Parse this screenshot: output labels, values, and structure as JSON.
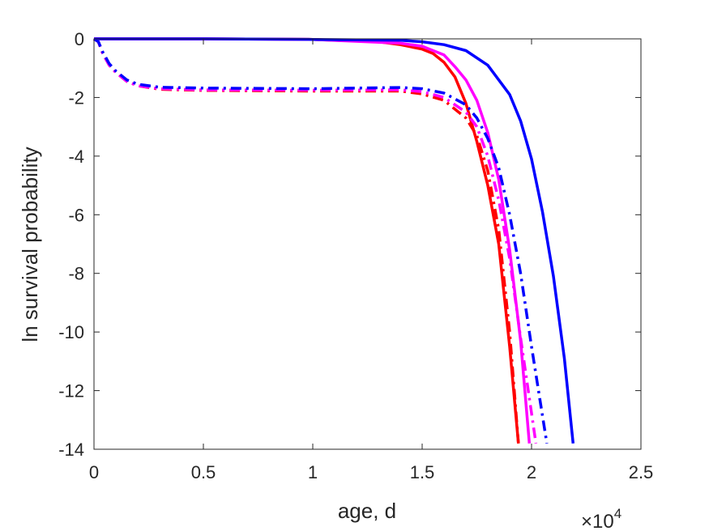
{
  "chart_data": {
    "type": "line",
    "xlabel": "age, d",
    "ylabel": "ln survival probability",
    "x_multiplier": {
      "base": "10",
      "exponent": "4",
      "sign": "×"
    },
    "xlim": [
      0,
      25000
    ],
    "ylim": [
      -14,
      0
    ],
    "xticks": [
      0,
      5000,
      10000,
      15000,
      20000,
      25000
    ],
    "xtick_labels": [
      "0",
      "0.5",
      "1",
      "1.5",
      "2",
      "2.5"
    ],
    "yticks": [
      0,
      -2,
      -4,
      -6,
      -8,
      -10,
      -12,
      -14
    ],
    "ytick_labels": [
      "0",
      "-2",
      "-4",
      "-6",
      "-8",
      "-10",
      "-12",
      "-14"
    ],
    "grid": false,
    "box": true,
    "series": [
      {
        "color": "#ff0000",
        "style": "solid",
        "x": [
          0,
          5000,
          10000,
          13000,
          14000,
          15000,
          15500,
          16000,
          16500,
          17000,
          17500,
          18000,
          18500,
          19000,
          19400
        ],
        "y": [
          0,
          0,
          -0.02,
          -0.1,
          -0.2,
          -0.35,
          -0.5,
          -0.8,
          -1.3,
          -2.2,
          -3.5,
          -5.0,
          -7.0,
          -10.5,
          -13.8
        ]
      },
      {
        "color": "#ff00ff",
        "style": "solid",
        "x": [
          0,
          5000,
          10000,
          14000,
          15000,
          16000,
          16500,
          17000,
          17500,
          18000,
          18500,
          19000,
          19500,
          19900
        ],
        "y": [
          0,
          0,
          -0.02,
          -0.15,
          -0.25,
          -0.55,
          -0.95,
          -1.4,
          -2.1,
          -3.2,
          -4.8,
          -7.2,
          -10.3,
          -13.8
        ]
      },
      {
        "color": "#0000ff",
        "style": "solid",
        "x": [
          0,
          5000,
          10000,
          14000,
          15000,
          16000,
          17000,
          18000,
          19000,
          19500,
          20000,
          20500,
          21000,
          21500,
          21900
        ],
        "y": [
          0,
          0,
          -0.02,
          -0.05,
          -0.1,
          -0.2,
          -0.4,
          -0.9,
          -1.9,
          -2.8,
          -4.1,
          -5.9,
          -8.1,
          -10.9,
          -13.8
        ]
      },
      {
        "color": "#ff0000",
        "style": "dashdot",
        "x": [
          0,
          200,
          400,
          700,
          1000,
          1500,
          2000,
          3000,
          5000,
          10000,
          14000,
          15000,
          16000,
          17000,
          17500,
          18000,
          18500,
          19000,
          19400
        ],
        "y": [
          0,
          -0.1,
          -0.5,
          -0.9,
          -1.15,
          -1.45,
          -1.6,
          -1.72,
          -1.76,
          -1.78,
          -1.78,
          -1.88,
          -2.1,
          -2.7,
          -3.3,
          -4.5,
          -6.5,
          -10.0,
          -13.8
        ]
      },
      {
        "color": "#ff00ff",
        "style": "dashdot",
        "x": [
          0,
          200,
          400,
          700,
          1000,
          1500,
          2000,
          3000,
          5000,
          10000,
          14000,
          15000,
          16000,
          17000,
          17500,
          18000,
          18500,
          19000,
          19500,
          20200
        ],
        "y": [
          0,
          -0.1,
          -0.5,
          -0.9,
          -1.15,
          -1.45,
          -1.6,
          -1.7,
          -1.74,
          -1.75,
          -1.74,
          -1.8,
          -2.0,
          -2.5,
          -3.0,
          -4.0,
          -5.5,
          -7.5,
          -10.2,
          -13.8
        ]
      },
      {
        "color": "#0000ff",
        "style": "dashdot",
        "x": [
          0,
          200,
          400,
          700,
          1000,
          1500,
          2000,
          3000,
          5000,
          10000,
          14000,
          15000,
          16000,
          17000,
          17500,
          18000,
          18500,
          19000,
          19500,
          20000,
          20700
        ],
        "y": [
          0,
          -0.1,
          -0.45,
          -0.85,
          -1.1,
          -1.4,
          -1.55,
          -1.65,
          -1.68,
          -1.7,
          -1.66,
          -1.7,
          -1.85,
          -2.25,
          -2.7,
          -3.4,
          -4.4,
          -6.0,
          -8.0,
          -10.5,
          -13.8
        ]
      }
    ]
  }
}
